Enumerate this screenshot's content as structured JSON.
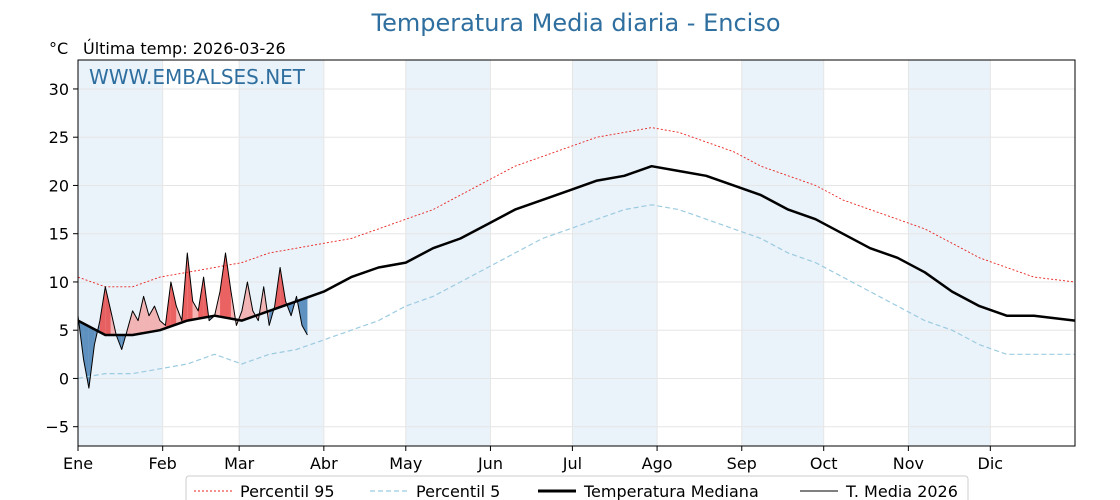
{
  "chart_data": {
    "type": "line",
    "title": "Temperatura Media diaria - Enciso",
    "unit_label": "°C",
    "last_temp_label": "Última temp: 2026-03-26",
    "watermark": "WWW.EMBALSES.NET",
    "ylim": [
      -7,
      33
    ],
    "yticks": [
      -5,
      0,
      5,
      10,
      15,
      20,
      25,
      30
    ],
    "ytick_labels": [
      "−5",
      "0",
      "5",
      "10",
      "15",
      "20",
      "25",
      "30"
    ],
    "xlim": [
      1,
      366
    ],
    "month_starts": [
      1,
      32,
      60,
      91,
      121,
      152,
      182,
      213,
      244,
      274,
      305,
      335
    ],
    "month_labels": [
      "Ene",
      "Feb",
      "Mar",
      "Abr",
      "May",
      "Jun",
      "Jul",
      "Ago",
      "Sep",
      "Oct",
      "Nov",
      "Dic"
    ],
    "grid": true,
    "legend_position": "bottom",
    "colors": {
      "p95": "#e8231f",
      "p5": "#9ccbe0",
      "median": "#000000",
      "current": "#000000",
      "above_fill": "#f4a3a3",
      "above_fill_strong": "#e63b3b",
      "below_fill": "#4f86b8",
      "band": "#eaf2fa",
      "title": "#2f6f9f"
    },
    "series": [
      {
        "name": "Percentil 95",
        "style": "dotted-red",
        "x": [
          1,
          11,
          21,
          31,
          41,
          51,
          61,
          71,
          81,
          91,
          101,
          111,
          121,
          131,
          141,
          151,
          161,
          171,
          181,
          191,
          201,
          211,
          221,
          231,
          241,
          251,
          261,
          271,
          281,
          291,
          301,
          311,
          321,
          331,
          341,
          351,
          366
        ],
        "y": [
          10.5,
          9.5,
          9.5,
          10.5,
          11.0,
          11.5,
          12.0,
          13.0,
          13.5,
          14.0,
          14.5,
          15.5,
          16.5,
          17.5,
          19.0,
          20.5,
          22.0,
          23.0,
          24.0,
          25.0,
          25.5,
          26.0,
          25.5,
          24.5,
          23.5,
          22.0,
          21.0,
          20.0,
          18.5,
          17.5,
          16.5,
          15.5,
          14.0,
          12.5,
          11.5,
          10.5,
          10.0
        ]
      },
      {
        "name": "Percentil 5",
        "style": "dashed-lightblue",
        "x": [
          1,
          11,
          21,
          31,
          41,
          51,
          61,
          71,
          81,
          91,
          101,
          111,
          121,
          131,
          141,
          151,
          161,
          171,
          181,
          191,
          201,
          211,
          221,
          231,
          241,
          251,
          261,
          271,
          281,
          291,
          301,
          311,
          321,
          331,
          341,
          351,
          366
        ],
        "y": [
          0.0,
          0.5,
          0.5,
          1.0,
          1.5,
          2.5,
          1.5,
          2.5,
          3.0,
          4.0,
          5.0,
          6.0,
          7.5,
          8.5,
          10.0,
          11.5,
          13.0,
          14.5,
          15.5,
          16.5,
          17.5,
          18.0,
          17.5,
          16.5,
          15.5,
          14.5,
          13.0,
          12.0,
          10.5,
          9.0,
          7.5,
          6.0,
          5.0,
          3.5,
          2.5,
          2.5,
          2.5
        ]
      },
      {
        "name": "Temperatura Mediana",
        "style": "thick-black",
        "x": [
          1,
          11,
          21,
          31,
          41,
          51,
          61,
          71,
          81,
          91,
          101,
          111,
          121,
          131,
          141,
          151,
          161,
          171,
          181,
          191,
          201,
          211,
          221,
          231,
          241,
          251,
          261,
          271,
          281,
          291,
          301,
          311,
          321,
          331,
          341,
          351,
          366
        ],
        "y": [
          6.0,
          4.5,
          4.5,
          5.0,
          6.0,
          6.5,
          6.0,
          7.0,
          8.0,
          9.0,
          10.5,
          11.5,
          12.0,
          13.5,
          14.5,
          16.0,
          17.5,
          18.5,
          19.5,
          20.5,
          21.0,
          22.0,
          21.5,
          21.0,
          20.0,
          19.0,
          17.5,
          16.5,
          15.0,
          13.5,
          12.5,
          11.0,
          9.0,
          7.5,
          6.5,
          6.5,
          6.0
        ]
      },
      {
        "name": "T. Media 2026",
        "style": "thin-black",
        "x": [
          1,
          3,
          5,
          7,
          9,
          11,
          13,
          15,
          17,
          19,
          21,
          23,
          25,
          27,
          29,
          31,
          33,
          35,
          37,
          39,
          41,
          43,
          45,
          47,
          49,
          51,
          53,
          55,
          57,
          59,
          61,
          63,
          65,
          67,
          69,
          71,
          73,
          75,
          77,
          79,
          81,
          83,
          85
        ],
        "y": [
          6.5,
          2.0,
          -1.0,
          3.5,
          6.0,
          9.5,
          7.0,
          4.5,
          3.0,
          5.0,
          7.0,
          6.0,
          8.5,
          6.5,
          7.5,
          6.0,
          5.5,
          10.0,
          7.5,
          6.0,
          13.0,
          8.0,
          7.0,
          10.5,
          6.0,
          6.5,
          9.0,
          13.0,
          9.0,
          5.5,
          7.0,
          10.0,
          7.0,
          6.0,
          9.5,
          5.5,
          7.5,
          11.5,
          8.0,
          6.5,
          8.5,
          5.5,
          4.5
        ]
      }
    ],
    "legend": [
      {
        "label": "Percentil 95",
        "style": "dotted-red"
      },
      {
        "label": "Percentil 5",
        "style": "dashed-lightblue"
      },
      {
        "label": "Temperatura Mediana",
        "style": "thick-black"
      },
      {
        "label": "T. Media 2026",
        "style": "thin-black"
      }
    ]
  }
}
